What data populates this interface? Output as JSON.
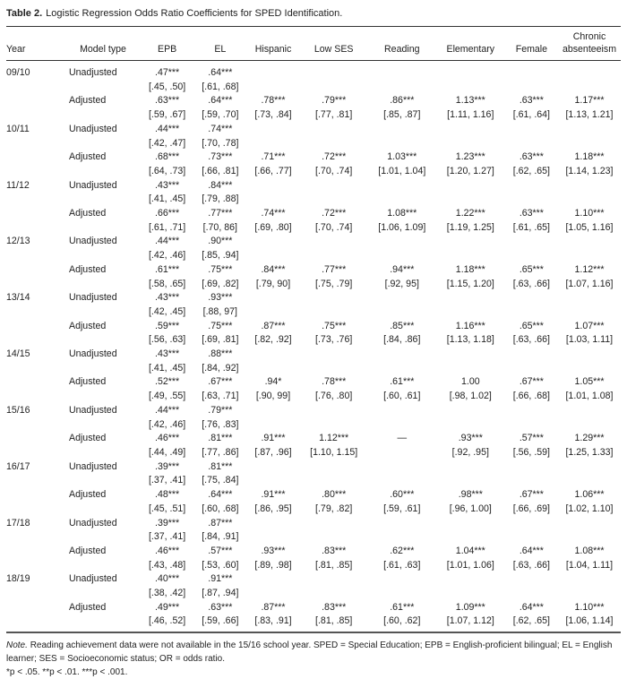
{
  "title": {
    "label": "Table 2.",
    "text": "Logistic Regression Odds Ratio Coefficients for SPED Identification."
  },
  "columns": [
    "Year",
    "Model type",
    "EPB",
    "EL",
    "Hispanic",
    "Low SES",
    "Reading",
    "Elementary",
    "Female",
    "Chronic absenteeism"
  ],
  "model_types": {
    "unadjusted": "Unadjusted",
    "adjusted": "Adjusted"
  },
  "years": [
    {
      "year": "09/10",
      "unadjusted": [
        [
          ".47***",
          "[.45, .50]"
        ],
        [
          ".64***",
          "[.61, .68]"
        ]
      ],
      "adjusted": [
        [
          ".63***",
          "[.59, .67]"
        ],
        [
          ".64***",
          "[.59, .70]"
        ],
        [
          ".78***",
          "[.73, .84]"
        ],
        [
          ".79***",
          "[.77, .81]"
        ],
        [
          ".86***",
          "[.85, .87]"
        ],
        [
          "1.13***",
          "[1.11, 1.16]"
        ],
        [
          ".63***",
          "[.61, .64]"
        ],
        [
          "1.17***",
          "[1.13, 1.21]"
        ]
      ]
    },
    {
      "year": "10/11",
      "unadjusted": [
        [
          ".44***",
          "[.42, .47]"
        ],
        [
          ".74***",
          "[.70, .78]"
        ]
      ],
      "adjusted": [
        [
          ".68***",
          "[.64, .73]"
        ],
        [
          ".73***",
          "[.66, .81]"
        ],
        [
          ".71***",
          "[.66, .77]"
        ],
        [
          ".72***",
          "[.70, .74]"
        ],
        [
          "1.03***",
          "[1.01, 1.04]"
        ],
        [
          "1.23***",
          "[1.20, 1.27]"
        ],
        [
          ".63***",
          "[.62, .65]"
        ],
        [
          "1.18***",
          "[1.14, 1.23]"
        ]
      ]
    },
    {
      "year": "11/12",
      "unadjusted": [
        [
          ".43***",
          "[.41, .45]"
        ],
        [
          ".84***",
          "[.79, .88]"
        ]
      ],
      "adjusted": [
        [
          ".66***",
          "[.61, .71]"
        ],
        [
          ".77***",
          "[.70, 86]"
        ],
        [
          ".74***",
          "[.69, .80]"
        ],
        [
          ".72***",
          "[.70, .74]"
        ],
        [
          "1.08***",
          "[1.06, 1.09]"
        ],
        [
          "1.22***",
          "[1.19, 1.25]"
        ],
        [
          ".63***",
          "[.61, .65]"
        ],
        [
          "1.10***",
          "[1.05, 1.16]"
        ]
      ]
    },
    {
      "year": "12/13",
      "unadjusted": [
        [
          ".44***",
          "[.42, .46]"
        ],
        [
          ".90***",
          "[.85, .94]"
        ]
      ],
      "adjusted": [
        [
          ".61***",
          "[.58, .65]"
        ],
        [
          ".75***",
          "[.69, .82]"
        ],
        [
          ".84***",
          "[.79, 90]"
        ],
        [
          ".77***",
          "[.75, .79]"
        ],
        [
          ".94***",
          "[.92, 95]"
        ],
        [
          "1.18***",
          "[1.15, 1.20]"
        ],
        [
          ".65***",
          "[.63, .66]"
        ],
        [
          "1.12***",
          "[1.07, 1.16]"
        ]
      ]
    },
    {
      "year": "13/14",
      "unadjusted": [
        [
          ".43***",
          "[.42, .45]"
        ],
        [
          ".93***",
          "[.88, 97]"
        ]
      ],
      "adjusted": [
        [
          ".59***",
          "[.56, .63]"
        ],
        [
          ".75***",
          "[.69, .81]"
        ],
        [
          ".87***",
          "[.82, .92]"
        ],
        [
          ".75***",
          "[.73, .76]"
        ],
        [
          ".85***",
          "[.84, .86]"
        ],
        [
          "1.16***",
          "[1.13, 1.18]"
        ],
        [
          ".65***",
          "[.63, .66]"
        ],
        [
          "1.07***",
          "[1.03, 1.11]"
        ]
      ]
    },
    {
      "year": "14/15",
      "unadjusted": [
        [
          ".43***",
          "[.41, .45]"
        ],
        [
          ".88***",
          "[.84, .92]"
        ]
      ],
      "adjusted": [
        [
          ".52***",
          "[.49, .55]"
        ],
        [
          ".67***",
          "[.63, .71]"
        ],
        [
          ".94*",
          "[.90, 99]"
        ],
        [
          ".78***",
          "[.76, .80]"
        ],
        [
          ".61***",
          "[.60, .61]"
        ],
        [
          "1.00",
          "[.98, 1.02]"
        ],
        [
          ".67***",
          "[.66, .68]"
        ],
        [
          "1.05***",
          "[1.01, 1.08]"
        ]
      ]
    },
    {
      "year": "15/16",
      "unadjusted": [
        [
          ".44***",
          "[.42, .46]"
        ],
        [
          ".79***",
          "[.76, .83]"
        ]
      ],
      "adjusted": [
        [
          ".46***",
          "[.44, .49]"
        ],
        [
          ".81***",
          "[.77, .86]"
        ],
        [
          ".91***",
          "[.87, .96]"
        ],
        [
          "1.12***",
          "[1.10, 1.15]"
        ],
        [
          "—",
          ""
        ],
        [
          ".93***",
          "[.92, .95]"
        ],
        [
          ".57***",
          "[.56, .59]"
        ],
        [
          "1.29***",
          "[1.25, 1.33]"
        ]
      ]
    },
    {
      "year": "16/17",
      "unadjusted": [
        [
          ".39***",
          "[.37, .41]"
        ],
        [
          ".81***",
          "[.75, .84]"
        ]
      ],
      "adjusted": [
        [
          ".48***",
          "[.45, .51]"
        ],
        [
          ".64***",
          "[.60, .68]"
        ],
        [
          ".91***",
          "[.86, .95]"
        ],
        [
          ".80***",
          "[.79, .82]"
        ],
        [
          ".60***",
          "[.59, .61]"
        ],
        [
          ".98***",
          "[.96, 1.00]"
        ],
        [
          ".67***",
          "[.66, .69]"
        ],
        [
          "1.06***",
          "[1.02, 1.10]"
        ]
      ]
    },
    {
      "year": "17/18",
      "unadjusted": [
        [
          ".39***",
          "[.37, .41]"
        ],
        [
          ".87***",
          "[.84, .91]"
        ]
      ],
      "adjusted": [
        [
          ".46***",
          "[.43, .48]"
        ],
        [
          ".57***",
          "[.53, .60]"
        ],
        [
          ".93***",
          "[.89, .98]"
        ],
        [
          ".83***",
          "[.81, .85]"
        ],
        [
          ".62***",
          "[.61, .63]"
        ],
        [
          "1.04***",
          "[1.01, 1.06]"
        ],
        [
          ".64***",
          "[.63, .66]"
        ],
        [
          "1.08***",
          "[1.04, 1.11]"
        ]
      ]
    },
    {
      "year": "18/19",
      "unadjusted": [
        [
          ".40***",
          "[.38, .42]"
        ],
        [
          ".91***",
          "[.87, .94]"
        ]
      ],
      "adjusted": [
        [
          ".49***",
          "[.46, .52]"
        ],
        [
          ".63***",
          "[.59, .66]"
        ],
        [
          ".87***",
          "[.83, .91]"
        ],
        [
          ".83***",
          "[.81, .85]"
        ],
        [
          ".61***",
          "[.60, .62]"
        ],
        [
          "1.09***",
          "[1.07, 1.12]"
        ],
        [
          ".64***",
          "[.62, .65]"
        ],
        [
          "1.10***",
          "[1.06, 1.14]"
        ]
      ]
    }
  ],
  "note": {
    "label": "Note.",
    "text": "Reading achievement data were not available in the 15/16 school year. SPED = Special Education; EPB = English-proficient bilingual; EL = English learner; SES = Socioeconomic status; OR = odds ratio.",
    "significance": "*p < .05. **p < .01. ***p < .001."
  }
}
